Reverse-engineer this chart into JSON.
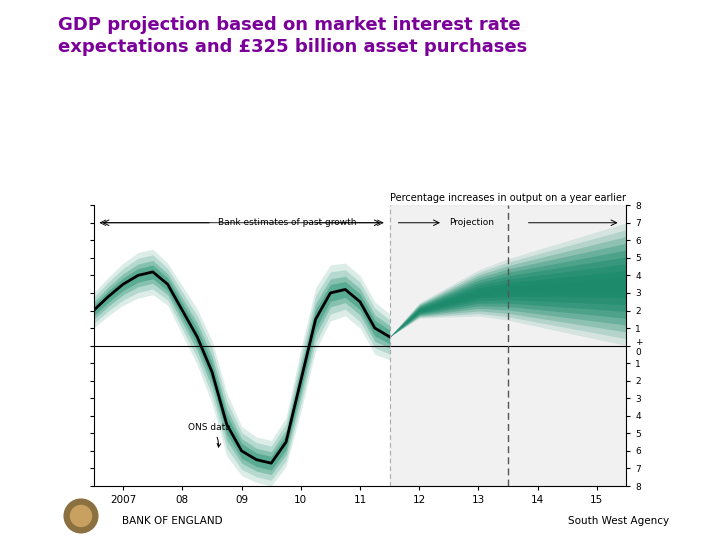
{
  "title": "GDP projection based on market interest rate\nexpectations and £325 billion asset purchases",
  "title_color": "#7B0099",
  "title_fontsize": 13,
  "chart_title": "Percentage increases in output on a year earlier",
  "background_color": "#ffffff",
  "ylim": [
    -8,
    8
  ],
  "xlim": [
    2006.5,
    2015.5
  ],
  "xticks": [
    2007,
    2008,
    2009,
    2010,
    2011,
    2012,
    2013,
    2014,
    2015
  ],
  "xticklabels": [
    "2007",
    "08",
    "09",
    "10",
    "11",
    "12",
    "13",
    "14",
    "15"
  ],
  "projection_start": 2011.5,
  "dashed_line_x": 2013.5,
  "footer_left": "BANK OF ENGLAND",
  "footer_right": "South West Agency"
}
